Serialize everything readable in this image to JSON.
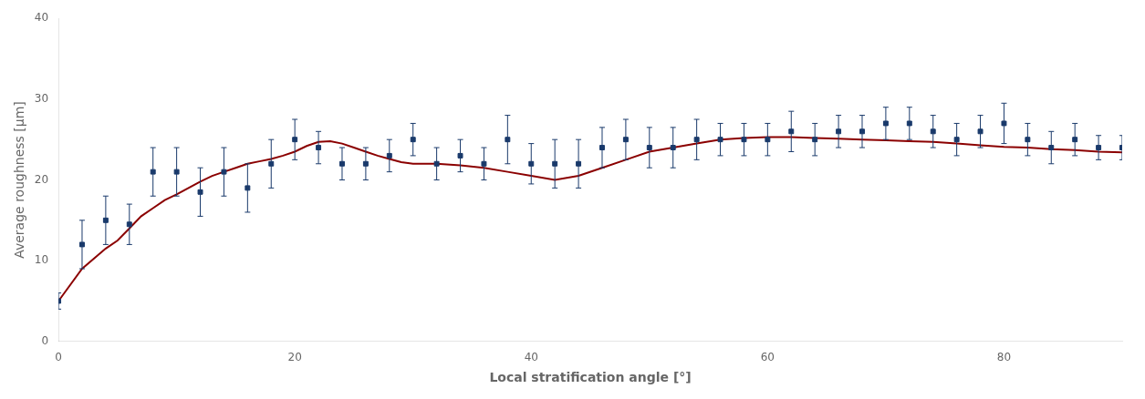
{
  "chart_data": {
    "type": "scatter",
    "xlabel": "Local stratification angle [°]",
    "ylabel": "Average roughness [μm]",
    "xlim": [
      0,
      90
    ],
    "ylim": [
      0,
      40
    ],
    "xticks": [
      0,
      20,
      40,
      60,
      80
    ],
    "yticks": [
      0,
      10,
      20,
      30,
      40
    ],
    "grid": false,
    "series": [
      {
        "type": "scatter",
        "color": "#1a3a6b",
        "marker": "square",
        "x": [
          0,
          2,
          4,
          6,
          8,
          10,
          12,
          14,
          16,
          18,
          20,
          22,
          24,
          26,
          28,
          30,
          32,
          34,
          36,
          38,
          40,
          42,
          44,
          46,
          48,
          50,
          52,
          54,
          56,
          58,
          60,
          62,
          64,
          66,
          68,
          70,
          72,
          74,
          76,
          78,
          80,
          82,
          84,
          86,
          88,
          90
        ],
        "values": [
          5,
          12,
          15,
          14.5,
          21,
          21,
          18.5,
          21,
          19,
          22,
          25,
          24,
          22,
          22,
          23,
          25,
          22,
          23,
          22,
          25,
          22,
          22,
          22,
          24,
          25,
          24,
          24,
          25,
          25,
          25,
          25,
          26,
          25,
          26,
          26,
          27,
          27,
          26,
          25,
          26,
          27,
          25,
          24,
          25,
          24,
          24
        ],
        "yerr": [
          1,
          3,
          3,
          2.5,
          3,
          3,
          3,
          3,
          3,
          3,
          2.5,
          2,
          2,
          2,
          2,
          2,
          2,
          2,
          2,
          3,
          2.5,
          3,
          3,
          2.5,
          2.5,
          2.5,
          2.5,
          2.5,
          2,
          2,
          2,
          2.5,
          2,
          2,
          2,
          2,
          2,
          2,
          2,
          2,
          2.5,
          2,
          2,
          2,
          1.5,
          1.5
        ]
      },
      {
        "type": "line",
        "color": "#8b0000",
        "line_style": "solid",
        "x": [
          0,
          2,
          4,
          5,
          6,
          7,
          8,
          9,
          10,
          11,
          12,
          13,
          14,
          15,
          16,
          17,
          18,
          19,
          20,
          21,
          22,
          23,
          24,
          25,
          26,
          27,
          28,
          29,
          30,
          32,
          34,
          36,
          38,
          40,
          42,
          44,
          46,
          48,
          50,
          52,
          54,
          56,
          58,
          60,
          62,
          64,
          66,
          68,
          70,
          72,
          74,
          76,
          78,
          80,
          82,
          84,
          86,
          88,
          90
        ],
        "values": [
          5.0,
          9.0,
          11.5,
          12.5,
          14.0,
          15.5,
          16.5,
          17.5,
          18.2,
          19.0,
          19.8,
          20.5,
          21.0,
          21.5,
          22.0,
          22.3,
          22.6,
          23.0,
          23.5,
          24.2,
          24.7,
          24.8,
          24.5,
          24.0,
          23.5,
          23.0,
          22.6,
          22.2,
          22.0,
          22.0,
          21.8,
          21.5,
          21.0,
          20.5,
          20.0,
          20.5,
          21.5,
          22.5,
          23.5,
          24.0,
          24.5,
          25.0,
          25.2,
          25.3,
          25.3,
          25.2,
          25.1,
          25.0,
          24.9,
          24.8,
          24.7,
          24.5,
          24.3,
          24.1,
          24.0,
          23.8,
          23.7,
          23.5,
          23.4
        ]
      }
    ]
  }
}
